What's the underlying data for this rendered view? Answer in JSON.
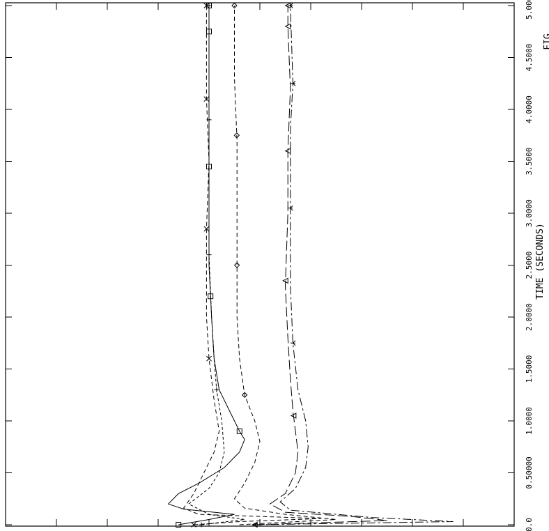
{
  "chart_data": {
    "type": "line",
    "orientation": "rotated-90",
    "xlabel": "TIME (SECONDS)",
    "fig_label": "FIG",
    "x_axis_range": [
      0,
      5.0
    ],
    "x_ticks": [
      {
        "value": 0.0,
        "label": "0.0"
      },
      {
        "value": 0.5,
        "label": "0.50000"
      },
      {
        "value": 1.0,
        "label": "1.0000"
      },
      {
        "value": 1.5,
        "label": "1.5000"
      },
      {
        "value": 2.0,
        "label": "2.0000"
      },
      {
        "value": 2.5,
        "label": "2.5000"
      },
      {
        "value": 3.0,
        "label": "3.0000"
      },
      {
        "value": 3.5,
        "label": "3.5000"
      },
      {
        "value": 4.0,
        "label": "4.0000"
      },
      {
        "value": 4.5,
        "label": "4.5000"
      },
      {
        "value": 5.0,
        "label": "5.0000"
      }
    ],
    "grid": false,
    "series": [
      {
        "marker": "square",
        "dash": "solid",
        "points": [
          [
            0.0,
            0.34
          ],
          [
            0.05,
            0.4
          ],
          [
            0.1,
            0.45
          ],
          [
            0.15,
            0.35
          ],
          [
            0.2,
            0.32
          ],
          [
            0.3,
            0.34
          ],
          [
            0.4,
            0.38
          ],
          [
            0.55,
            0.43
          ],
          [
            0.7,
            0.46
          ],
          [
            0.82,
            0.47
          ],
          [
            0.9,
            0.46
          ],
          [
            1.0,
            0.45
          ],
          [
            1.1,
            0.44
          ],
          [
            1.3,
            0.42
          ],
          [
            1.6,
            0.41
          ],
          [
            2.0,
            0.405
          ],
          [
            2.5,
            0.4
          ],
          [
            3.0,
            0.4
          ],
          [
            3.5,
            0.4
          ],
          [
            4.0,
            0.4
          ],
          [
            4.5,
            0.4
          ],
          [
            5.0,
            0.4
          ]
        ],
        "marker_at": [
          0.0,
          0.9,
          2.2,
          3.45,
          4.75,
          5.0
        ]
      },
      {
        "marker": "x",
        "dash": "dashed",
        "points": [
          [
            0.0,
            0.37
          ],
          [
            0.03,
            0.46
          ],
          [
            0.06,
            0.62
          ],
          [
            0.1,
            0.38
          ],
          [
            0.16,
            0.35
          ],
          [
            0.3,
            0.37
          ],
          [
            0.5,
            0.39
          ],
          [
            0.7,
            0.41
          ],
          [
            0.9,
            0.42
          ],
          [
            1.2,
            0.41
          ],
          [
            1.6,
            0.4
          ],
          [
            2.0,
            0.395
          ],
          [
            2.85,
            0.395
          ],
          [
            3.5,
            0.4
          ],
          [
            4.1,
            0.395
          ],
          [
            5.0,
            0.395
          ]
        ],
        "marker_at": [
          0.0,
          1.6,
          2.85,
          4.1,
          5.0
        ]
      },
      {
        "marker": "plus",
        "dash": "short-dash",
        "points": [
          [
            0.0,
            0.385
          ],
          [
            0.05,
            0.47
          ],
          [
            0.1,
            0.4
          ],
          [
            0.2,
            0.36
          ],
          [
            0.35,
            0.4
          ],
          [
            0.5,
            0.42
          ],
          [
            0.7,
            0.43
          ],
          [
            1.0,
            0.425
          ],
          [
            1.3,
            0.415
          ],
          [
            1.6,
            0.41
          ],
          [
            2.0,
            0.405
          ],
          [
            2.6,
            0.4
          ],
          [
            3.0,
            0.4
          ],
          [
            3.9,
            0.4
          ],
          [
            5.0,
            0.4
          ]
        ],
        "marker_at": [
          0.0,
          1.3,
          2.6,
          3.9,
          5.0
        ]
      },
      {
        "marker": "diamond",
        "dash": "dashed",
        "points": [
          [
            0.0,
            0.46
          ],
          [
            0.05,
            0.65
          ],
          [
            0.1,
            0.55
          ],
          [
            0.16,
            0.47
          ],
          [
            0.25,
            0.45
          ],
          [
            0.4,
            0.47
          ],
          [
            0.6,
            0.49
          ],
          [
            0.8,
            0.5
          ],
          [
            1.0,
            0.49
          ],
          [
            1.25,
            0.47
          ],
          [
            1.6,
            0.46
          ],
          [
            2.0,
            0.455
          ],
          [
            2.5,
            0.455
          ],
          [
            3.0,
            0.455
          ],
          [
            3.7,
            0.455
          ],
          [
            4.3,
            0.45
          ],
          [
            5.0,
            0.45
          ]
        ],
        "marker_at": [
          1.25,
          2.5,
          3.75,
          5.0
        ]
      },
      {
        "marker": "triangle",
        "dash": "long-dash",
        "points": [
          [
            0.0,
            0.49
          ],
          [
            0.04,
            0.75
          ],
          [
            0.08,
            0.68
          ],
          [
            0.12,
            0.55
          ],
          [
            0.2,
            0.52
          ],
          [
            0.3,
            0.55
          ],
          [
            0.5,
            0.57
          ],
          [
            0.7,
            0.575
          ],
          [
            0.9,
            0.57
          ],
          [
            1.1,
            0.565
          ],
          [
            1.4,
            0.56
          ],
          [
            1.8,
            0.555
          ],
          [
            2.3,
            0.55
          ],
          [
            3.0,
            0.555
          ],
          [
            3.6,
            0.555
          ],
          [
            4.2,
            0.56
          ],
          [
            4.8,
            0.555
          ],
          [
            5.0,
            0.555
          ]
        ],
        "marker_at": [
          0.0,
          1.05,
          2.35,
          3.6,
          4.8,
          5.0
        ]
      },
      {
        "marker": "tri-down",
        "dash": "dash-dot",
        "points": [
          [
            0.0,
            0.49
          ],
          [
            0.03,
            0.88
          ],
          [
            0.07,
            0.72
          ],
          [
            0.14,
            0.56
          ],
          [
            0.22,
            0.54
          ],
          [
            0.35,
            0.57
          ],
          [
            0.55,
            0.59
          ],
          [
            0.75,
            0.595
          ],
          [
            1.0,
            0.59
          ],
          [
            1.3,
            0.575
          ],
          [
            1.75,
            0.565
          ],
          [
            2.3,
            0.56
          ],
          [
            3.05,
            0.56
          ],
          [
            3.8,
            0.56
          ],
          [
            4.25,
            0.565
          ],
          [
            5.0,
            0.56
          ]
        ],
        "marker_at": [
          0.0,
          1.75,
          3.05,
          4.25,
          5.0
        ]
      }
    ]
  }
}
